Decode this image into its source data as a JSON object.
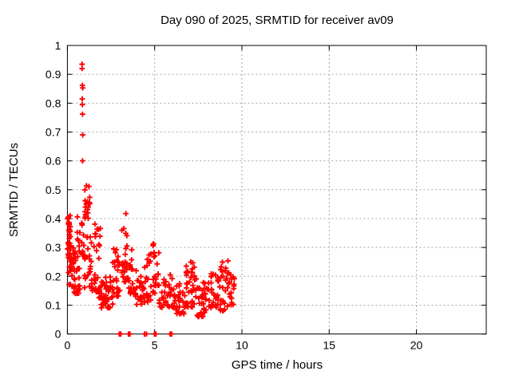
{
  "title": "Day 090 of 2025, SRMTID for receiver av09",
  "colors": {
    "marker": "#ff0000",
    "axis": "#000000",
    "grid": "#a8a8a8",
    "background": "#ffffff",
    "text": "#000000"
  },
  "chart_data": {
    "type": "scatter",
    "title": "Day 090 of 2025, SRMTID for receiver av09",
    "xlabel": "GPS time / hours",
    "ylabel": "SRMTID / TECUs",
    "xlim": [
      0,
      24
    ],
    "ylim": [
      0,
      1
    ],
    "xticks": [
      0,
      5,
      10,
      15,
      20
    ],
    "xtick_labels": [
      "0",
      "5",
      "10",
      "15",
      "20"
    ],
    "yticks": [
      0,
      0.1,
      0.2,
      0.3,
      0.4,
      0.5,
      0.6,
      0.7,
      0.8,
      0.9,
      1
    ],
    "ytick_labels": [
      "0",
      "0.1",
      "0.2",
      "0.3",
      "0.4",
      "0.5",
      "0.6",
      "0.7",
      "0.8",
      "0.9",
      "1"
    ],
    "grid": true,
    "grid_style": "dashed",
    "legend": "none",
    "marker": "plus",
    "marker_color": "#ff0000",
    "description": "Dense scatter of SRMTID values from 0 to about 9.6 GPS hours; band mostly 0.05-0.35 TECUs, large spike near 0.85 h reaching ~0.93, secondary cluster ~0.4-0.53 near 1.1 h, isolated zero-value marks between 3 and 6 h, no data after ~9.6 h.",
    "outlier_points": [
      [
        0.84,
        0.935
      ],
      [
        0.84,
        0.92
      ],
      [
        0.86,
        0.862
      ],
      [
        0.88,
        0.853
      ],
      [
        0.85,
        0.815
      ],
      [
        0.86,
        0.795
      ],
      [
        0.87,
        0.762
      ],
      [
        0.88,
        0.69
      ],
      [
        0.87,
        0.6
      ]
    ],
    "zero_points": [
      2.98,
      3.02,
      3.06,
      3.5,
      3.54,
      3.58,
      4.42,
      4.53,
      4.99,
      5.03,
      5.07,
      5.89,
      5.93,
      5.97
    ],
    "clusters": [
      {
        "x0": 0.0,
        "x1": 0.18,
        "y0": 0.25,
        "y1": 0.41,
        "n": 30,
        "spread": "uniform"
      },
      {
        "x0": 0.02,
        "x1": 0.45,
        "y0": 0.17,
        "y1": 0.32,
        "n": 30,
        "spread": "low"
      },
      {
        "x0": 0.3,
        "x1": 0.72,
        "y0": 0.14,
        "y1": 0.27,
        "n": 22,
        "spread": "low"
      },
      {
        "x0": 0.55,
        "x1": 0.95,
        "y0": 0.27,
        "y1": 0.42,
        "n": 16,
        "spread": "uniform"
      },
      {
        "x0": 0.98,
        "x1": 1.3,
        "y0": 0.4,
        "y1": 0.53,
        "n": 18,
        "spread": "uniform"
      },
      {
        "x0": 0.95,
        "x1": 1.45,
        "y0": 0.15,
        "y1": 0.34,
        "n": 28,
        "spread": "low"
      },
      {
        "x0": 1.5,
        "x1": 1.9,
        "y0": 0.12,
        "y1": 0.385,
        "n": 30,
        "spread": "low"
      },
      {
        "x0": 1.9,
        "x1": 2.6,
        "y0": 0.09,
        "y1": 0.2,
        "n": 42,
        "spread": "low"
      },
      {
        "x0": 2.6,
        "x1": 3.05,
        "y0": 0.13,
        "y1": 0.3,
        "n": 26,
        "spread": "low"
      },
      {
        "x0": 3.05,
        "x1": 3.45,
        "y0": 0.18,
        "y1": 0.42,
        "n": 26,
        "spread": "low"
      },
      {
        "x0": 3.45,
        "x1": 3.8,
        "y0": 0.14,
        "y1": 0.3,
        "n": 20,
        "spread": "low"
      },
      {
        "x0": 3.8,
        "x1": 4.4,
        "y0": 0.1,
        "y1": 0.22,
        "n": 26,
        "spread": "low"
      },
      {
        "x0": 4.4,
        "x1": 4.85,
        "y0": 0.11,
        "y1": 0.28,
        "n": 20,
        "spread": "low"
      },
      {
        "x0": 4.9,
        "x1": 5.25,
        "y0": 0.14,
        "y1": 0.35,
        "n": 22,
        "spread": "low"
      },
      {
        "x0": 5.25,
        "x1": 5.8,
        "y0": 0.09,
        "y1": 0.2,
        "n": 22,
        "spread": "low"
      },
      {
        "x0": 5.8,
        "x1": 6.25,
        "y0": 0.09,
        "y1": 0.22,
        "n": 22,
        "spread": "low"
      },
      {
        "x0": 6.25,
        "x1": 6.8,
        "y0": 0.07,
        "y1": 0.18,
        "n": 26,
        "spread": "low"
      },
      {
        "x0": 6.8,
        "x1": 7.4,
        "y0": 0.09,
        "y1": 0.25,
        "n": 36,
        "spread": "low"
      },
      {
        "x0": 7.4,
        "x1": 8.2,
        "y0": 0.06,
        "y1": 0.18,
        "n": 38,
        "spread": "low"
      },
      {
        "x0": 8.2,
        "x1": 8.75,
        "y0": 0.09,
        "y1": 0.21,
        "n": 30,
        "spread": "low"
      },
      {
        "x0": 8.75,
        "x1": 9.3,
        "y0": 0.08,
        "y1": 0.26,
        "n": 30,
        "spread": "low"
      },
      {
        "x0": 9.3,
        "x1": 9.58,
        "y0": 0.1,
        "y1": 0.22,
        "n": 14,
        "spread": "low"
      }
    ]
  }
}
